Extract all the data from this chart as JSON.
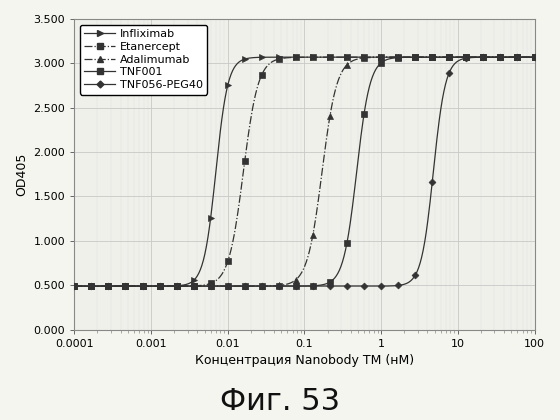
{
  "title": "Фиг. 53",
  "xlabel": "Концентрация Nanobody ТМ (нМ)",
  "ylabel": "OD405",
  "xlim": [
    0.0001,
    100
  ],
  "ylim": [
    0.0,
    3.5
  ],
  "yticks": [
    0.0,
    0.5,
    1.0,
    1.5,
    2.0,
    2.5,
    3.0,
    3.5
  ],
  "xtick_labels": [
    "0.0001",
    "0.001",
    "0.01",
    "0.1",
    "1",
    "10",
    "100"
  ],
  "xtick_vals": [
    0.0001,
    0.001,
    0.01,
    0.1,
    1,
    10,
    100
  ],
  "series": [
    {
      "label": "Infliximab",
      "ec50": 0.007,
      "hill": 5.5,
      "bottom": 0.49,
      "top": 3.07,
      "linestyle": "-",
      "marker": ">",
      "markersize": 4,
      "linewidth": 0.9
    },
    {
      "label": "Etanercept",
      "ec50": 0.016,
      "hill": 4.5,
      "bottom": 0.49,
      "top": 3.07,
      "linestyle": "-.",
      "marker": "s",
      "markersize": 4,
      "linewidth": 0.9
    },
    {
      "label": "Adalimumab",
      "ec50": 0.17,
      "hill": 4.5,
      "bottom": 0.49,
      "top": 3.07,
      "linestyle": "-.",
      "marker": "^",
      "markersize": 4,
      "linewidth": 0.9
    },
    {
      "label": "TNF001",
      "ec50": 0.48,
      "hill": 5.0,
      "bottom": 0.49,
      "top": 3.07,
      "linestyle": "-",
      "marker": "s",
      "markersize": 4,
      "linewidth": 0.9
    },
    {
      "label": "TNF056-PEG40",
      "ec50": 4.8,
      "hill": 5.5,
      "bottom": 0.49,
      "top": 3.07,
      "linestyle": "-",
      "marker": "D",
      "markersize": 3.5,
      "linewidth": 0.9
    }
  ],
  "line_color": "#333333",
  "background_color": "#f5f5f0",
  "plot_bg_color": "#f0f0eb",
  "grid_color": "#c8c8c8",
  "title_fontsize": 22,
  "axis_fontsize": 9,
  "tick_fontsize": 8,
  "legend_fontsize": 8
}
